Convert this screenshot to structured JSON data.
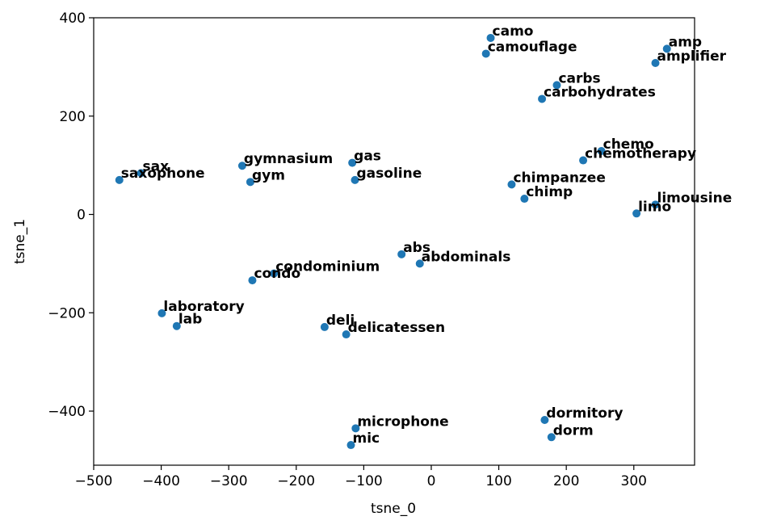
{
  "chart_data": {
    "type": "scatter",
    "title": "",
    "xlabel": "tsne_0",
    "ylabel": "tsne_1",
    "xlim": [
      -500,
      390
    ],
    "ylim": [
      -510,
      400
    ],
    "xticks": [
      -500,
      -400,
      -300,
      -200,
      -100,
      0,
      100,
      200,
      300
    ],
    "xtick_labels": [
      "−500",
      "−400",
      "−300",
      "−200",
      "−100",
      "0",
      "100",
      "200",
      "300"
    ],
    "yticks": [
      400,
      200,
      0,
      -200,
      -400
    ],
    "ytick_labels": [
      "400",
      "200",
      "0",
      "−200",
      "−400"
    ],
    "grid": false,
    "marker_color": "#1f77b4",
    "points": [
      {
        "label": "camo",
        "x": 88,
        "y": 359
      },
      {
        "label": "camouflage",
        "x": 81,
        "y": 327
      },
      {
        "label": "amp",
        "x": 349,
        "y": 337
      },
      {
        "label": "amplifier",
        "x": 332,
        "y": 308
      },
      {
        "label": "carbs",
        "x": 186,
        "y": 263
      },
      {
        "label": "carbohydrates",
        "x": 164,
        "y": 235
      },
      {
        "label": "chemo",
        "x": 252,
        "y": 129
      },
      {
        "label": "chemotherapy",
        "x": 225,
        "y": 110
      },
      {
        "label": "limousine",
        "x": 332,
        "y": 20
      },
      {
        "label": "limo",
        "x": 304,
        "y": 2
      },
      {
        "label": "chimpanzee",
        "x": 119,
        "y": 61
      },
      {
        "label": "chimp",
        "x": 138,
        "y": 32
      },
      {
        "label": "sax",
        "x": -430,
        "y": 84
      },
      {
        "label": "saxophone",
        "x": -462,
        "y": 70
      },
      {
        "label": "gymnasium",
        "x": -280,
        "y": 99
      },
      {
        "label": "gym",
        "x": -268,
        "y": 66
      },
      {
        "label": "gas",
        "x": -117,
        "y": 105
      },
      {
        "label": "gasoline",
        "x": -113,
        "y": 70
      },
      {
        "label": "abs",
        "x": -44,
        "y": -81
      },
      {
        "label": "abdominals",
        "x": -17,
        "y": -100
      },
      {
        "label": "condominium",
        "x": -233,
        "y": -120
      },
      {
        "label": "condo",
        "x": -265,
        "y": -134
      },
      {
        "label": "laboratory",
        "x": -399,
        "y": -201
      },
      {
        "label": "lab",
        "x": -377,
        "y": -227
      },
      {
        "label": "deli",
        "x": -158,
        "y": -229
      },
      {
        "label": "delicatessen",
        "x": -126,
        "y": -244
      },
      {
        "label": "microphone",
        "x": -112,
        "y": -435
      },
      {
        "label": "mic",
        "x": -119,
        "y": -469
      },
      {
        "label": "dormitory",
        "x": 168,
        "y": -418
      },
      {
        "label": "dorm",
        "x": 178,
        "y": -453
      }
    ]
  }
}
